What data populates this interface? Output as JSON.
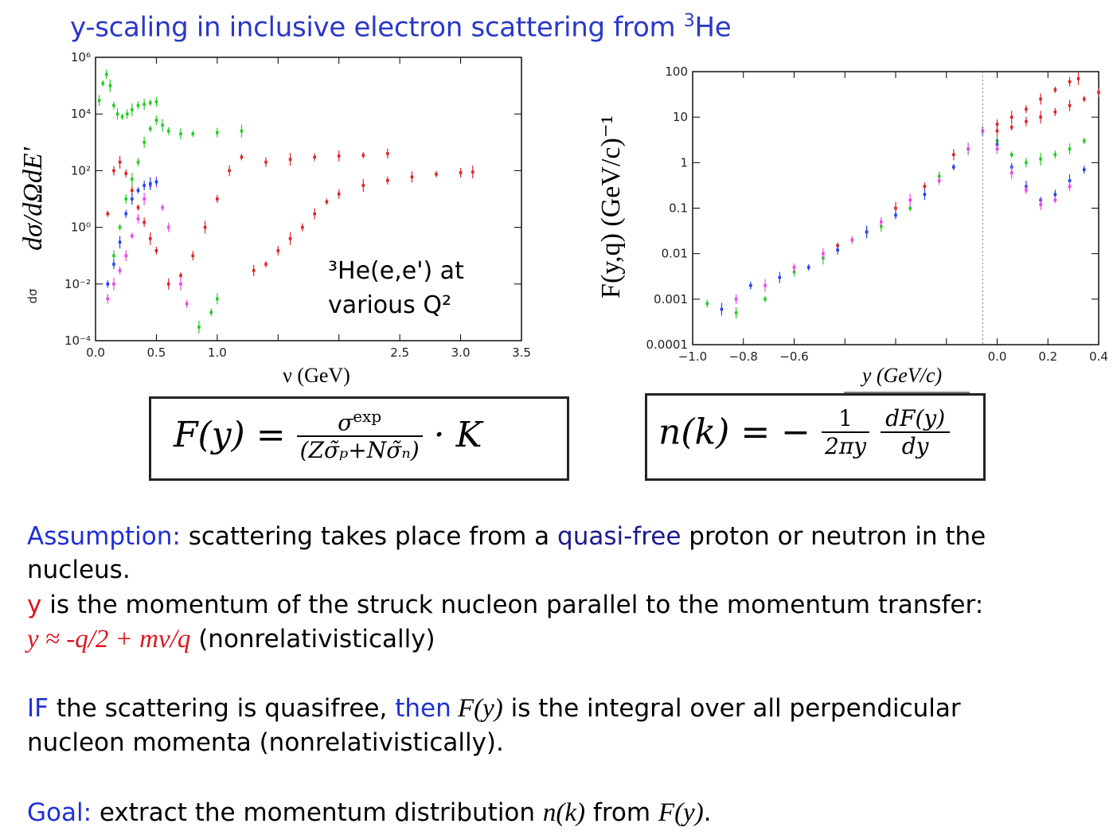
{
  "title": "y-scaling in inclusive electron scattering from ",
  "title_sup": "3",
  "title_end": "He",
  "chart_data": [
    {
      "type": "scatter",
      "yscale": "log",
      "xlabel": "ν (GeV)",
      "ylabel": "dσ/dΩdE'",
      "ylabel_small": "dσ",
      "xlim": [
        0,
        3.5
      ],
      "ylim": [
        0.0001,
        1000000
      ],
      "x_ticks": [
        "0.0",
        "0.5",
        "1.0",
        "",
        "",
        "2.5",
        "3.0",
        "3.5"
      ],
      "y_ticks": [
        "10⁶",
        "10⁴",
        "10²",
        "10⁰",
        "10⁻²",
        "10⁻⁴"
      ],
      "annotation_line1": "³He(e,e') at",
      "annotation_line2": "various Q²",
      "series": [
        {
          "color": "#e02424",
          "x": [
            0.1,
            0.15,
            0.2,
            0.25,
            0.3,
            0.35,
            0.4,
            0.45,
            0.5,
            0.6,
            0.7,
            0.8,
            0.9,
            1.0,
            1.1,
            1.2,
            1.4,
            1.6,
            1.8,
            2.0,
            2.2,
            2.4
          ],
          "y": [
            3,
            100,
            200,
            80,
            20,
            5,
            1.5,
            0.4,
            0.15,
            0.01,
            0.02,
            0.1,
            1,
            10,
            100,
            300,
            200,
            250,
            300,
            330,
            350,
            400
          ]
        },
        {
          "color": "#e02424",
          "x": [
            1.3,
            1.4,
            1.5,
            1.6,
            1.7,
            1.8,
            1.9,
            2.0,
            2.2,
            2.4,
            2.6,
            2.8,
            3.0,
            3.1
          ],
          "y": [
            0.03,
            0.05,
            0.15,
            0.4,
            1,
            3,
            8,
            15,
            30,
            45,
            60,
            75,
            85,
            90
          ]
        },
        {
          "color": "#22cc22",
          "x": [
            0.1,
            0.15,
            0.2,
            0.25,
            0.3,
            0.35,
            0.4,
            0.45,
            0.5,
            0.55,
            0.6,
            0.7,
            0.8,
            1.0,
            1.2
          ],
          "y": [
            0.01,
            0.1,
            1,
            10,
            50,
            200,
            1000,
            3000,
            6000,
            4000,
            2500,
            2000,
            2000,
            2200,
            2500
          ]
        },
        {
          "color": "#22cc22",
          "x": [
            0.85,
            0.95,
            1.0
          ],
          "y": [
            0.0003,
            0.001,
            0.003
          ]
        },
        {
          "color": "#ee44ee",
          "x": [
            0.1,
            0.15,
            0.2,
            0.25,
            0.3,
            0.35,
            0.4,
            0.45,
            0.5,
            0.55,
            0.6,
            0.7,
            0.75
          ],
          "y": [
            0.003,
            0.01,
            0.03,
            0.1,
            0.5,
            2,
            10,
            30,
            40,
            5,
            1,
            0.01,
            0.002
          ]
        },
        {
          "color": "#2244ee",
          "x": [
            0.1,
            0.15,
            0.2,
            0.25,
            0.3,
            0.35,
            0.4,
            0.45,
            0.5
          ],
          "y": [
            0.01,
            0.05,
            0.3,
            3,
            10,
            20,
            30,
            35,
            40
          ]
        },
        {
          "color": "#22cc22",
          "x": [
            0.03,
            0.06,
            0.09,
            0.12,
            0.15,
            0.18,
            0.22,
            0.26,
            0.3,
            0.35,
            0.4,
            0.45,
            0.5
          ],
          "y": [
            30000,
            120000,
            250000,
            100000,
            20000,
            10000,
            8000,
            10000,
            14000,
            20000,
            22000,
            25000,
            27000
          ]
        }
      ]
    },
    {
      "type": "scatter",
      "yscale": "log",
      "xlabel": "y (GeV/c)",
      "ylabel": "F(y,q) (GeV/c)⁻¹",
      "xlim": [
        -1.0,
        0.4
      ],
      "ylim": [
        0.0001,
        100
      ],
      "x_ticks": [
        "−1.0",
        "−0.8",
        "−0.6",
        "",
        "",
        "",
        "0.0",
        "0.2",
        "0.4"
      ],
      "y_ticks": [
        "100",
        "10",
        "1",
        "0.1",
        "0.01",
        "0.001",
        "0.0001"
      ],
      "series": [
        {
          "color": "#e02424",
          "x": [
            -0.5,
            -0.4,
            -0.3,
            -0.2,
            -0.1,
            0.0,
            0.05,
            0.1,
            0.15,
            0.2,
            0.25,
            0.3,
            0.33
          ],
          "y": [
            0.015,
            0.03,
            0.1,
            0.3,
            1.5,
            5,
            7,
            10,
            15,
            25,
            40,
            60,
            70
          ]
        },
        {
          "color": "#e02424",
          "x": [
            0.05,
            0.1,
            0.15,
            0.2,
            0.25,
            0.3,
            0.35,
            0.4
          ],
          "y": [
            5,
            6,
            8,
            10,
            13,
            18,
            25,
            35
          ]
        },
        {
          "color": "#22cc22",
          "x": [
            -0.95,
            -0.85,
            -0.75,
            -0.65,
            -0.55,
            -0.45,
            -0.35,
            -0.25,
            -0.15,
            -0.05,
            0.0,
            0.05,
            0.1,
            0.15,
            0.2,
            0.25,
            0.3,
            0.35
          ],
          "y": [
            0.0008,
            0.0005,
            0.001,
            0.004,
            0.008,
            0.02,
            0.04,
            0.1,
            0.5,
            2,
            5,
            3,
            1.5,
            1,
            1.2,
            1.5,
            2,
            3
          ]
        },
        {
          "color": "#2244ee",
          "x": [
            -0.9,
            -0.8,
            -0.7,
            -0.6,
            -0.5,
            -0.4,
            -0.3,
            -0.2,
            -0.1,
            0.0,
            0.05,
            0.1,
            0.15,
            0.2,
            0.25,
            0.3,
            0.35
          ],
          "y": [
            0.0006,
            0.002,
            0.003,
            0.005,
            0.012,
            0.03,
            0.07,
            0.2,
            0.8,
            5,
            2.5,
            0.8,
            0.3,
            0.15,
            0.2,
            0.4,
            0.7
          ]
        },
        {
          "color": "#ee44ee",
          "x": [
            -0.85,
            -0.75,
            -0.65,
            -0.55,
            -0.45,
            -0.35,
            -0.25,
            -0.15,
            -0.05,
            0.0,
            0.05,
            0.1,
            0.15,
            0.2,
            0.25,
            0.3
          ],
          "y": [
            0.001,
            0.002,
            0.005,
            0.01,
            0.02,
            0.05,
            0.15,
            0.4,
            2,
            5,
            2,
            0.6,
            0.25,
            0.12,
            0.15,
            0.3
          ]
        }
      ]
    }
  ],
  "formula_left": {
    "lhs": "F(y) =",
    "num": "σ",
    "num_sup": "exp",
    "den": "(Zσ̃ₚ+Nσ̃ₙ)",
    "rhs": "· K"
  },
  "formula_right": {
    "lhs": "n(k) = −",
    "num1": "1",
    "den1": "2πy",
    "num2": "dF(y)",
    "den2": "dy"
  },
  "text": {
    "assumption_label": "Assumption:",
    "assumption_a": "  scattering takes place from a ",
    "quasi_free": "quasi-free",
    "assumption_b": " proton or neutron in the",
    "assumption_c": "nucleus.",
    "y_label": "y",
    "y_def": " is the momentum of the struck nucleon parallel to the momentum transfer:",
    "y_formula": "y ≈ -q/2 + mν/q",
    "y_formula_note": " (nonrelativistically)",
    "if_label": "IF",
    "if_a": " the  scattering is quasifree, ",
    "then_label": "then",
    "if_fy": " F(y)",
    "if_b": " is the integral over all perpendicular",
    "if_c": "nucleon momenta (nonrelativistically).",
    "goal_label": "Goal:",
    "goal_a": " extract the momentum distribution ",
    "goal_nk": "n(k)",
    "goal_b": " from ",
    "goal_fy": "F(y)",
    "goal_c": "."
  }
}
